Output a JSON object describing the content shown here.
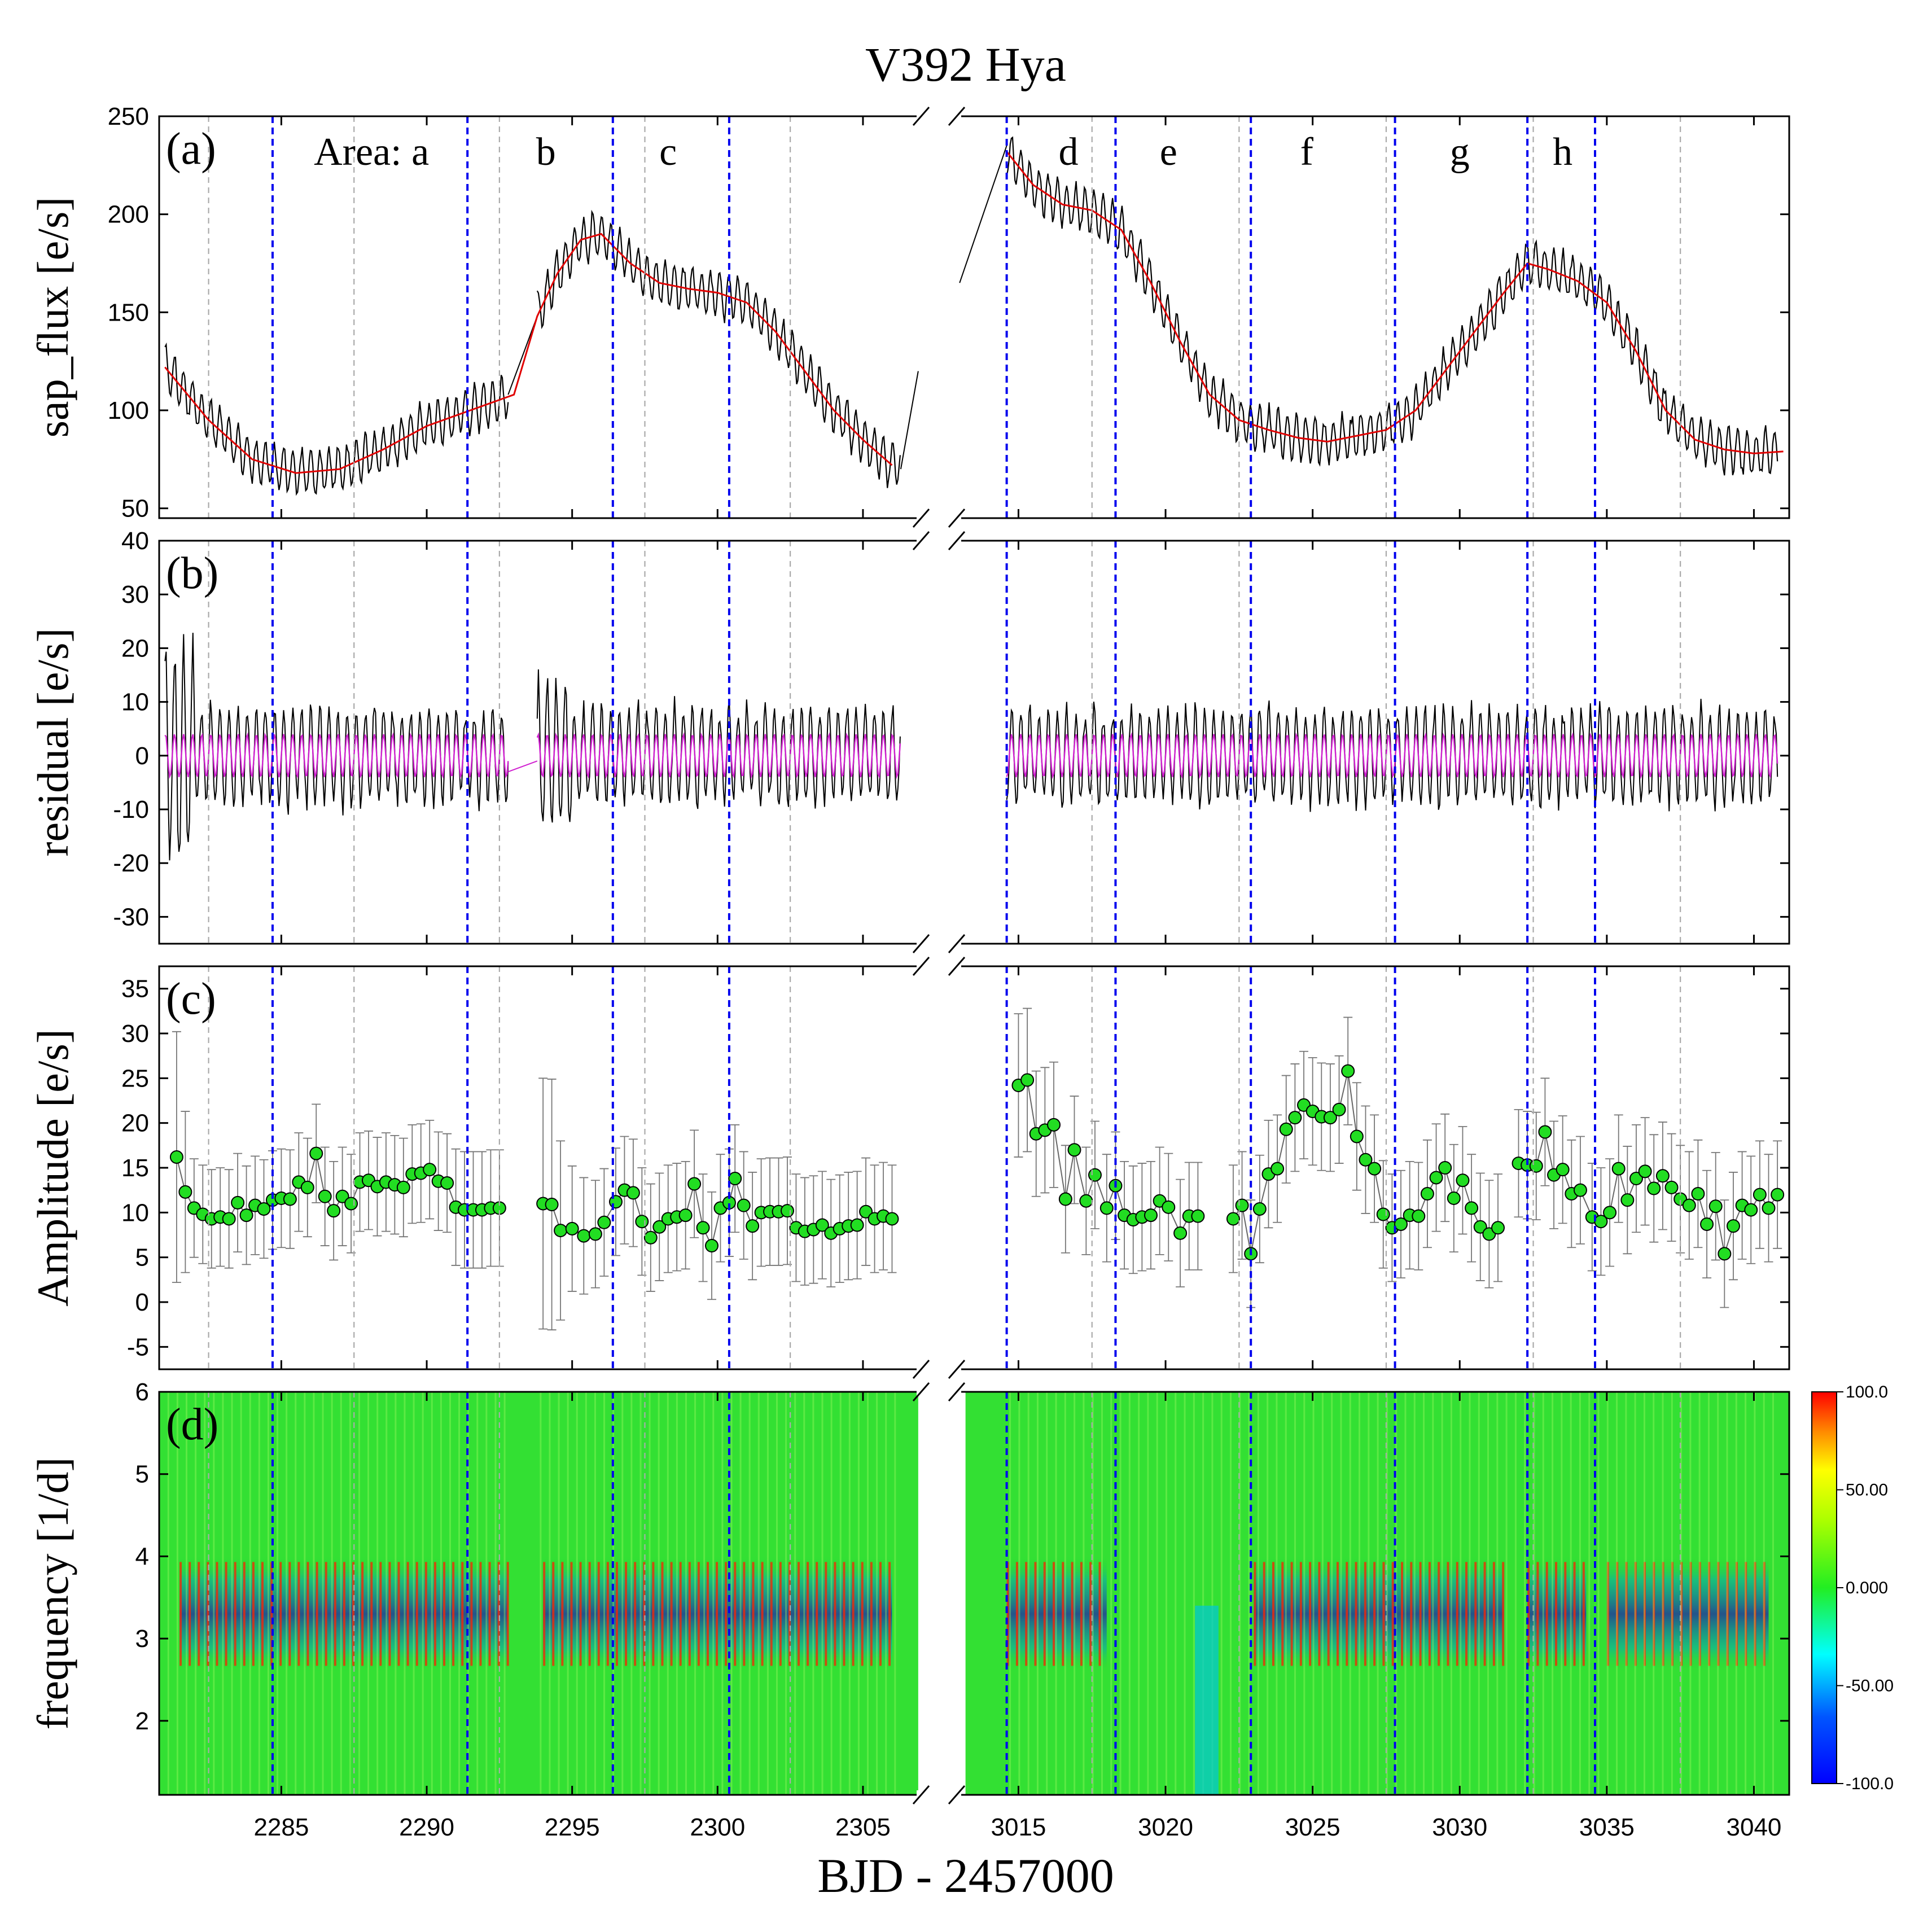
{
  "title": "V392 Hya",
  "xlabel": "BJD - 2457000",
  "panels": [
    {
      "id": "a",
      "label": "(a)",
      "ylabel": "sap_flux [e/s]",
      "ylim": [
        45,
        250
      ],
      "yticks": [
        {
          "v": 50,
          "t": "50"
        },
        {
          "v": 100,
          "t": "100"
        },
        {
          "v": 150,
          "t": "150"
        },
        {
          "v": 200,
          "t": "200"
        },
        {
          "v": 250,
          "t": "250"
        }
      ]
    },
    {
      "id": "b",
      "label": "(b)",
      "ylabel": "residual [e/s]",
      "ylim": [
        -35,
        40
      ],
      "yticks": [
        {
          "v": -30,
          "t": "-30"
        },
        {
          "v": -20,
          "t": "-20"
        },
        {
          "v": -10,
          "t": "-10"
        },
        {
          "v": 0,
          "t": "0"
        },
        {
          "v": 10,
          "t": "10"
        },
        {
          "v": 20,
          "t": "20"
        },
        {
          "v": 30,
          "t": "30"
        },
        {
          "v": 40,
          "t": "40"
        }
      ]
    },
    {
      "id": "c",
      "label": "(c)",
      "ylabel": "Amplitude [e/s]",
      "ylim": [
        -7.5,
        37.5
      ],
      "yticks": [
        {
          "v": -5,
          "t": "-5"
        },
        {
          "v": 0,
          "t": "0"
        },
        {
          "v": 5,
          "t": "5"
        },
        {
          "v": 10,
          "t": "10"
        },
        {
          "v": 15,
          "t": "15"
        },
        {
          "v": 20,
          "t": "20"
        },
        {
          "v": 25,
          "t": "25"
        },
        {
          "v": 30,
          "t": "30"
        },
        {
          "v": 35,
          "t": "35"
        }
      ]
    },
    {
      "id": "d",
      "label": "(d)",
      "ylabel": "frequency [1/d]",
      "ylim": [
        1.1,
        6
      ],
      "yticks": [
        {
          "v": 2,
          "t": "2"
        },
        {
          "v": 3,
          "t": "3"
        },
        {
          "v": 4,
          "t": "4"
        },
        {
          "v": 5,
          "t": "5"
        },
        {
          "v": 6,
          "t": "6"
        }
      ]
    }
  ],
  "areas": [
    {
      "label": "Area: a",
      "x": 2288.1
    },
    {
      "label": "b",
      "x": 2294.1
    },
    {
      "label": "c",
      "x": 2298.3
    },
    {
      "label": "d",
      "x": 3016.7
    },
    {
      "label": "e",
      "x": 3020.1
    },
    {
      "label": "f",
      "x": 3024.8
    },
    {
      "label": "g",
      "x": 3030.0
    },
    {
      "label": "h",
      "x": 3033.5
    }
  ],
  "colorbar": {
    "ticks": [
      {
        "v": 100,
        "t": "100.0"
      },
      {
        "v": 50,
        "t": "50.00"
      },
      {
        "v": 0,
        "t": "0.000"
      },
      {
        "v": -50,
        "t": "-50.00"
      },
      {
        "v": -100,
        "t": "-100.0"
      }
    ]
  },
  "colors": {
    "flux": "#000000",
    "trend": "#e00000",
    "fit": "#d020d0",
    "boundary": "#0000ee",
    "guide": "#aaaaaa",
    "point": "#22dd22"
  },
  "chart_data": {
    "type": "line",
    "title": "V392 Hya",
    "xlabel": "BJD - 2457000",
    "x_segments": [
      {
        "xlim": [
          2280.8,
          2307.0
        ],
        "xticks": [
          2285,
          2290,
          2295,
          2300,
          2305
        ]
      },
      {
        "xlim": [
          3012.9,
          3041.2
        ],
        "xticks": [
          3015,
          3020,
          3025,
          3030,
          3035,
          3040
        ]
      }
    ],
    "area_boundaries": [
      2284.7,
      2291.4,
      2296.4,
      2300.4,
      3014.6,
      3018.3,
      3022.9,
      3027.8,
      3032.3,
      3034.6
    ],
    "guide_lines": [
      2282.5,
      2287.5,
      2292.5,
      2297.5,
      2302.5,
      3017.5,
      3022.5,
      3027.5,
      3032.5,
      3037.5
    ],
    "trend": {
      "x": [
        2281.0,
        2282.5,
        2284.0,
        2285.5,
        2287.0,
        2288.5,
        2290.0,
        2291.5,
        2293.0,
        2293.8,
        2294.5,
        2295.3,
        2296.0,
        2297.0,
        2298.0,
        2299.0,
        2300.0,
        2301.0,
        2302.0,
        2303.0,
        2304.0,
        2305.0,
        2306.0,
        3014.6,
        3015.5,
        3016.5,
        3017.5,
        3018.5,
        3019.5,
        3020.5,
        3021.5,
        3022.5,
        3023.5,
        3024.5,
        3025.5,
        3026.5,
        3027.5,
        3028.5,
        3029.5,
        3030.5,
        3031.5,
        3032.3,
        3033.0,
        3034.0,
        3035.0,
        3036.0,
        3037.0,
        3038.0,
        3039.0,
        3040.0,
        3041.0
      ],
      "y": [
        122,
        95,
        75,
        68,
        70,
        80,
        92,
        100,
        108,
        148,
        170,
        187,
        190,
        175,
        165,
        162,
        160,
        155,
        140,
        120,
        100,
        85,
        72,
        232,
        215,
        205,
        202,
        192,
        165,
        135,
        108,
        95,
        90,
        86,
        84,
        87,
        90,
        100,
        120,
        140,
        160,
        175,
        172,
        166,
        155,
        130,
        100,
        85,
        80,
        78,
        79
      ]
    },
    "oscillation": {
      "frequency_per_day": 3.2,
      "period_days": 0.3125,
      "flux_amplitude": 11,
      "fit_amplitude": 4
    },
    "amplitude_series": [
      {
        "name": "segment-1",
        "x": [
          2281.4,
          2281.7,
          2282.0,
          2282.3,
          2282.6,
          2282.9,
          2283.2,
          2283.5,
          2283.8,
          2284.1,
          2284.4,
          2284.7,
          2285.0,
          2285.3,
          2285.6,
          2285.9,
          2286.2,
          2286.5,
          2286.8,
          2287.1,
          2287.4,
          2287.7,
          2288.0,
          2288.3,
          2288.6,
          2288.9,
          2289.2,
          2289.5,
          2289.8,
          2290.1,
          2290.4,
          2290.7,
          2291.0,
          2291.3,
          2291.6,
          2291.9,
          2292.2,
          2292.5
        ],
        "y": [
          16.2,
          12.3,
          10.5,
          9.8,
          9.3,
          9.5,
          9.3,
          11.1,
          9.7,
          10.8,
          10.4,
          11.4,
          11.6,
          11.5,
          13.4,
          12.8,
          16.6,
          11.8,
          10.2,
          11.8,
          11.0,
          13.4,
          13.6,
          12.9,
          13.4,
          13.1,
          12.8,
          14.3,
          14.4,
          14.8,
          13.5,
          13.3,
          10.6,
          10.3,
          10.3,
          10.3,
          10.5,
          10.5
        ],
        "err": [
          14,
          9,
          5.5,
          5.5,
          5.5,
          5.5,
          5.5,
          5.5,
          5.5,
          5.5,
          5.5,
          5.5,
          5.5,
          5.5,
          5.5,
          5.5,
          5.5,
          5.5,
          5.5,
          5.5,
          5.5,
          5.5,
          5.5,
          5.5,
          5.5,
          5.5,
          5.5,
          5.5,
          5.5,
          5.5,
          5.5,
          5.5,
          6.5,
          6.5,
          6.5,
          6.5,
          6.5,
          6.5
        ]
      },
      {
        "name": "segment-2",
        "x": [
          2294.0,
          2294.3,
          2294.6,
          2295.0,
          2295.4,
          2295.8,
          2296.1,
          2296.5,
          2296.8,
          2297.1,
          2297.4,
          2297.7,
          2298.0,
          2298.3,
          2298.6,
          2298.9,
          2299.2,
          2299.5,
          2299.8,
          2300.1,
          2300.4,
          2300.6,
          2300.9,
          2301.2,
          2301.5,
          2301.8,
          2302.1,
          2302.4,
          2302.7,
          2303.0,
          2303.3,
          2303.6,
          2303.9,
          2304.2,
          2304.5,
          2304.8,
          2305.1,
          2305.4,
          2305.7,
          2306.0
        ],
        "y": [
          11,
          10.9,
          8,
          8.2,
          7.4,
          7.6,
          8.9,
          11.2,
          12.5,
          12.2,
          9.0,
          7.2,
          8.4,
          9.3,
          9.5,
          9.7,
          13.2,
          8.3,
          6.3,
          10.5,
          11.1,
          13.8,
          10.8,
          8.5,
          10.0,
          10.1,
          10.1,
          10.2,
          8.3,
          7.9,
          8.1,
          8.6,
          7.7,
          8.2,
          8.5,
          8.6,
          10.1,
          9.3,
          9.6,
          9.3
        ],
        "err": [
          14,
          14,
          10,
          7,
          6.5,
          6,
          6,
          6,
          6,
          6,
          6,
          6,
          6,
          6,
          6,
          6,
          6,
          6,
          6,
          6,
          6,
          6,
          6,
          6,
          6,
          6,
          6,
          6,
          6,
          6,
          6,
          6,
          6,
          6,
          6,
          6,
          6,
          6,
          6,
          6
        ]
      },
      {
        "name": "segment-3",
        "x": [
          3015.0,
          3015.3,
          3015.6,
          3015.9,
          3016.2,
          3016.6,
          3016.9,
          3017.3,
          3017.6,
          3018.0,
          3018.3,
          3018.6,
          3018.9,
          3019.2,
          3019.5,
          3019.8,
          3020.1,
          3020.5,
          3020.8,
          3021.1
        ],
        "y": [
          24.2,
          24.8,
          18.8,
          19.2,
          19.8,
          11.5,
          17,
          11.3,
          14.2,
          10.5,
          13.0,
          9.7,
          9.2,
          9.5,
          9.7,
          11.3,
          10.6,
          7.7,
          9.6,
          9.6
        ],
        "err": [
          8,
          8,
          7,
          7,
          7,
          6,
          6,
          6,
          6,
          6,
          6,
          6,
          6,
          6,
          6,
          6,
          6,
          6,
          6,
          6
        ]
      },
      {
        "name": "segment-4",
        "x": [
          3022.3,
          3022.6,
          3022.9,
          3023.2,
          3023.5,
          3023.8,
          3024.1,
          3024.4,
          3024.7,
          3025.0,
          3025.3,
          3025.6,
          3025.9,
          3026.2,
          3026.5,
          3026.8,
          3027.1,
          3027.4,
          3027.7,
          3028.0,
          3028.3,
          3028.6,
          3028.9,
          3029.2,
          3029.5,
          3029.8,
          3030.1,
          3030.4,
          3030.7,
          3031.0,
          3031.3
        ],
        "y": [
          9.3,
          10.8,
          5.4,
          10.4,
          14.3,
          14.9,
          19.3,
          20.6,
          22.0,
          21.3,
          20.7,
          20.6,
          21.5,
          25.8,
          18.5,
          15.9,
          14.9,
          9.8,
          8.3,
          8.7,
          9.7,
          9.6,
          12.1,
          13.9,
          15.0,
          11.6,
          13.6,
          10.5,
          8.4,
          7.6,
          8.3
        ],
        "err": [
          6,
          6,
          6,
          6,
          6,
          6,
          6,
          6,
          6,
          6,
          6,
          6,
          6,
          6,
          6,
          6,
          6,
          6,
          6,
          6,
          6,
          6,
          6,
          6,
          6,
          6,
          6,
          6,
          6,
          6,
          6
        ]
      },
      {
        "name": "segment-5",
        "x": [
          3032.0,
          3032.3,
          3032.6,
          3032.9,
          3033.2,
          3033.5,
          3033.8,
          3034.1,
          3034.5,
          3034.8,
          3035.1,
          3035.4,
          3035.7,
          3036.0,
          3036.3,
          3036.6,
          3036.9,
          3037.2,
          3037.5,
          3037.8,
          3038.1,
          3038.4,
          3038.7,
          3039.0,
          3039.3,
          3039.6,
          3039.9,
          3040.2,
          3040.5,
          3040.8
        ],
        "y": [
          15.5,
          15.3,
          15.2,
          19.0,
          14.2,
          14.8,
          12.1,
          12.5,
          9.5,
          9.0,
          10.0,
          14.9,
          11.4,
          13.8,
          14.6,
          12.7,
          14.1,
          12.8,
          11.5,
          10.8,
          12.1,
          8.7,
          10.7,
          5.4,
          8.5,
          10.8,
          10.3,
          12.0,
          10.5,
          12.0
        ],
        "err": [
          6,
          6,
          6,
          6,
          6,
          6,
          6,
          6,
          6,
          6,
          6,
          6,
          6,
          6,
          6,
          6,
          6,
          6,
          6,
          6,
          6,
          6,
          6,
          6,
          6,
          6,
          6,
          6,
          6,
          6
        ]
      }
    ],
    "wavelet": {
      "type": "heatmap",
      "zlim": [
        -100,
        100
      ],
      "peak_frequency": 3.2,
      "band": [
        2.6,
        4.0
      ],
      "strong_regions": [
        [
          2281.5,
          2292.8
        ],
        [
          2294.0,
          2306.0
        ],
        [
          3014.6,
          3018.0
        ],
        [
          3023.0,
          3028.0
        ],
        [
          3028.0,
          3031.5
        ],
        [
          3032.3,
          3034.3
        ],
        [
          3035.0,
          3040.5
        ]
      ]
    }
  }
}
